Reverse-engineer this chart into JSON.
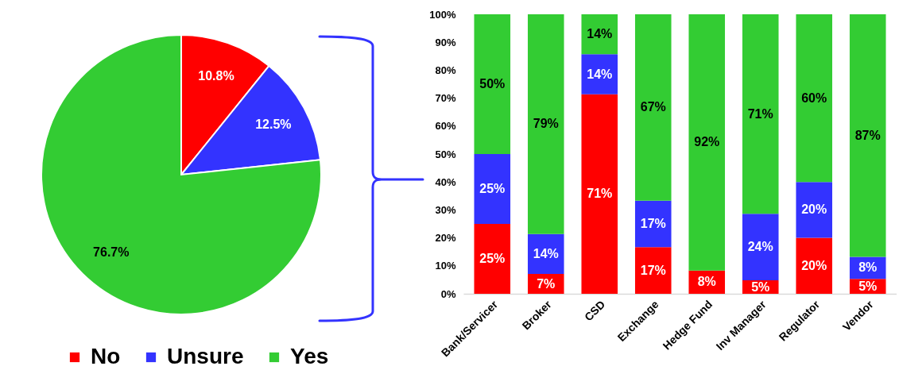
{
  "chart_data": [
    {
      "type": "pie",
      "categories": [
        "No",
        "Unsure",
        "Yes"
      ],
      "values": [
        10.8,
        12.5,
        76.7
      ],
      "colors": [
        "#ff0000",
        "#3333ff",
        "#33cc33"
      ],
      "value_labels": [
        "10.8%",
        "12.5%",
        "76.7%"
      ],
      "legend": "bottom"
    },
    {
      "type": "bar",
      "stacked": true,
      "categories": [
        "Bank/Servicer",
        "Broker",
        "CSD",
        "Exchange",
        "Hedge Fund",
        "Inv Manager",
        "Regulator",
        "Vendor"
      ],
      "series": [
        {
          "name": "No",
          "color": "#ff0000",
          "values": [
            25,
            7.1,
            71.4,
            16.7,
            8.3,
            4.8,
            20,
            5.3
          ],
          "value_labels": [
            "25%",
            "7%",
            "71%",
            "17%",
            "8%",
            "5%",
            "20%",
            "5%"
          ]
        },
        {
          "name": "Unsure",
          "color": "#3333ff",
          "values": [
            25,
            14.3,
            14.3,
            16.6,
            0,
            23.8,
            20,
            7.9
          ],
          "value_labels": [
            "25%",
            "14%",
            "14%",
            "17%",
            null,
            "24%",
            "20%",
            "8%"
          ]
        },
        {
          "name": "Yes",
          "color": "#33cc33",
          "values": [
            50,
            78.6,
            14.3,
            66.7,
            91.7,
            71.4,
            60,
            86.8
          ],
          "value_labels": [
            "50%",
            "79%",
            "14%",
            "67%",
            "92%",
            "71%",
            "60%",
            "87%"
          ]
        }
      ],
      "ylim": [
        0,
        100
      ],
      "yticks": [
        {
          "value": 0,
          "label": "0%"
        },
        {
          "value": 10,
          "label": "10%"
        },
        {
          "value": 20,
          "label": "20%"
        },
        {
          "value": 30,
          "label": "30%"
        },
        {
          "value": 40,
          "label": "40%"
        },
        {
          "value": 50,
          "label": "50%"
        },
        {
          "value": 60,
          "label": "60%"
        },
        {
          "value": 70,
          "label": "70%"
        },
        {
          "value": 80,
          "label": "80%"
        },
        {
          "value": 90,
          "label": "90%"
        },
        {
          "value": 100,
          "label": "100%"
        }
      ]
    }
  ]
}
